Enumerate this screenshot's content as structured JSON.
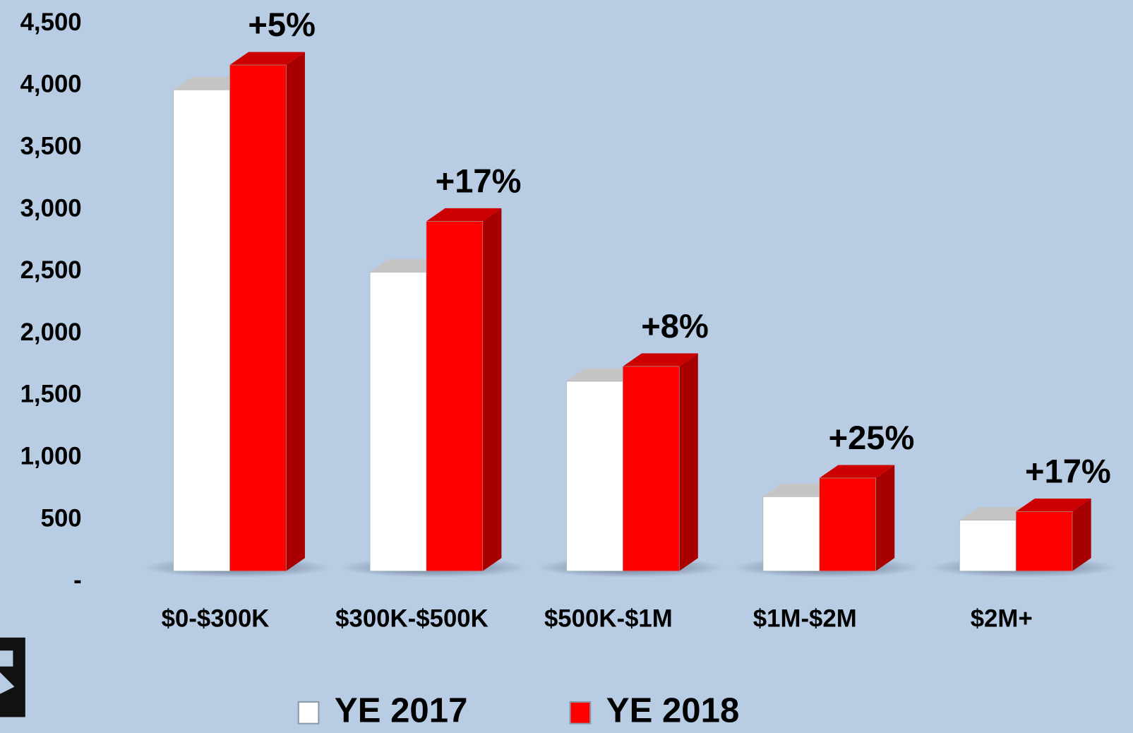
{
  "chart_data": {
    "type": "bar3d",
    "categories": [
      "$0-$300K",
      "$300K-$500K",
      "$500K-$1M",
      "$1M-$2M",
      "$2M+"
    ],
    "series": [
      {
        "name": "YE 2017",
        "color": "#ffffff",
        "values": [
          3880,
          2410,
          1530,
          600,
          410
        ]
      },
      {
        "name": "YE 2018",
        "color": "#ff0000",
        "values": [
          4080,
          2820,
          1650,
          750,
          480
        ]
      }
    ],
    "annotations": [
      "+5%",
      "+17%",
      "+8%",
      "+25%",
      "+17%"
    ],
    "ylim": [
      0,
      4500
    ],
    "yticks": [
      {
        "value": 0,
        "label": "-"
      },
      500,
      {
        "value": 1000,
        "label": "1,000"
      },
      {
        "value": 1500,
        "label": "1,500"
      },
      {
        "value": 2000,
        "label": "2,000"
      },
      {
        "value": 2500,
        "label": "2,500"
      },
      {
        "value": 3000,
        "label": "3,000"
      },
      {
        "value": 3500,
        "label": "3,500"
      },
      {
        "value": 4000,
        "label": "4,000"
      },
      {
        "value": 4500,
        "label": "4,500"
      }
    ],
    "legend": "bottom"
  }
}
